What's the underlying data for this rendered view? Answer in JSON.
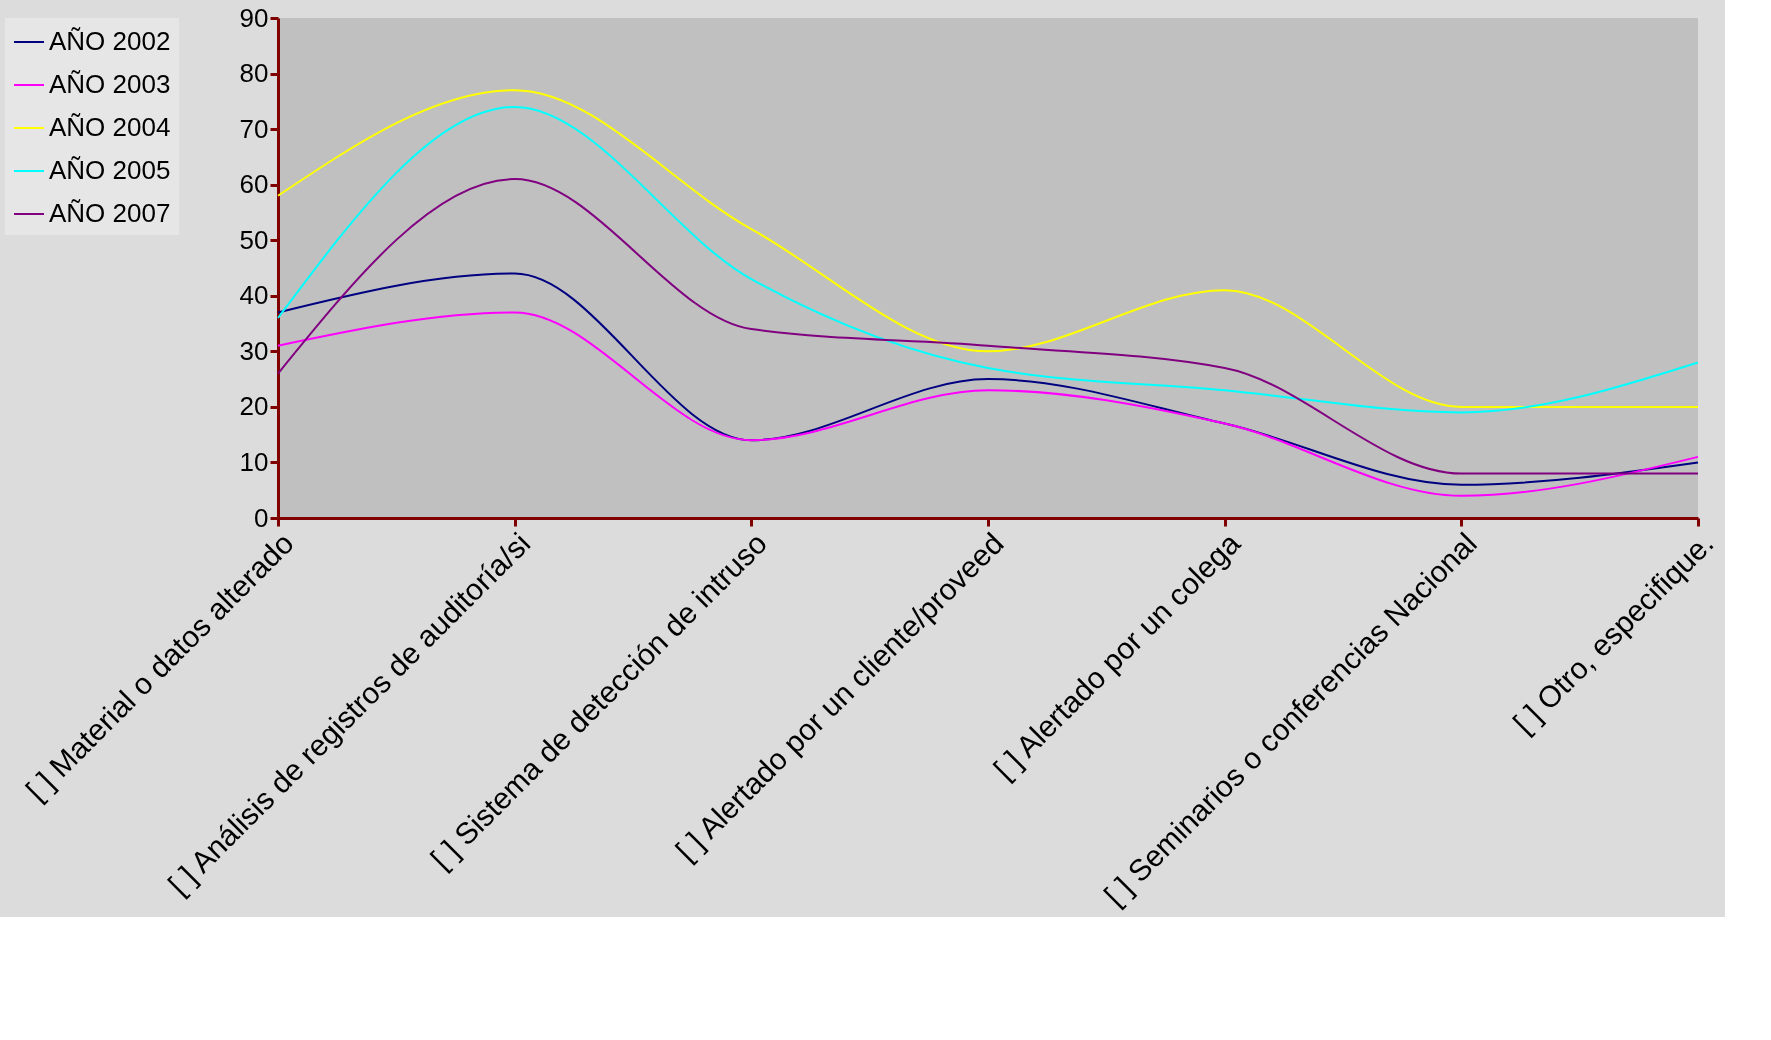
{
  "chart_data": {
    "type": "line",
    "categories": [
      "[ ] Material o datos alterado",
      "[ ] Análisis de registros de auditoría/si",
      "[ ] Sistema de detección de intruso",
      "[ ] Alertado por un cliente/proveed",
      "[ ] Alertado por un colega",
      "[ ] Seminarios o conferencias Nacional",
      "[ ] Otro, especifique."
    ],
    "series": [
      {
        "name": "AÑO 2002",
        "color": "#000080",
        "values": [
          37,
          44,
          14,
          25,
          17,
          6,
          10
        ]
      },
      {
        "name": "AÑO 2003",
        "color": "#ff00ff",
        "values": [
          31,
          37,
          14,
          23,
          17,
          4,
          11
        ]
      },
      {
        "name": "AÑO 2004",
        "color": "#ffff00",
        "values": [
          58,
          77,
          52,
          30,
          41,
          20,
          20
        ]
      },
      {
        "name": "AÑO 2005",
        "color": "#00ffff",
        "values": [
          36,
          74,
          43,
          27,
          23,
          19,
          28
        ]
      },
      {
        "name": "AÑO 2007",
        "color": "#800080",
        "values": [
          26,
          61,
          34,
          31,
          27,
          8,
          8
        ]
      }
    ],
    "ylim": [
      0,
      90
    ],
    "yticks": [
      0,
      10,
      20,
      30,
      40,
      50,
      60,
      70,
      80,
      90
    ],
    "grid": false,
    "legend": "left",
    "marker": "none",
    "line_style": "solid"
  }
}
